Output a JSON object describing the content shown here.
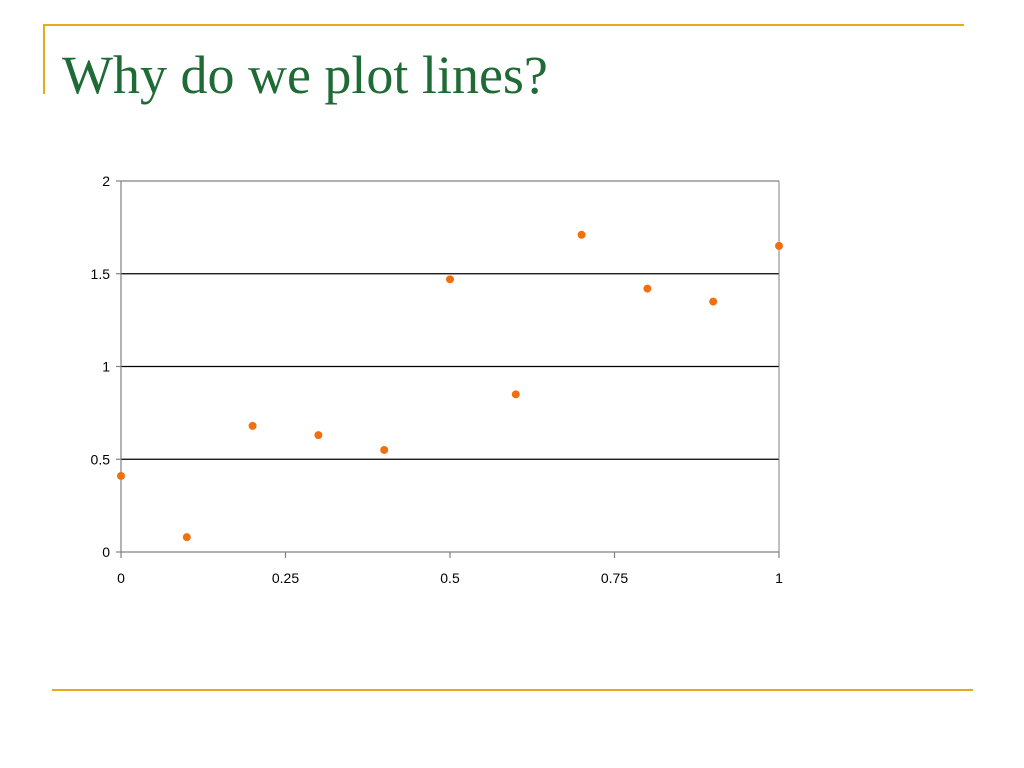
{
  "slide": {
    "title": "Why do we plot lines?"
  },
  "colors": {
    "title": "#1e6b35",
    "accent": "#e8a920",
    "marker": "#f07010",
    "gridline": "#000000",
    "axis": "#808080"
  },
  "chart_data": {
    "type": "scatter",
    "title": "",
    "xlabel": "",
    "ylabel": "",
    "xlim": [
      0,
      1
    ],
    "ylim": [
      0,
      2
    ],
    "x_ticks": [
      0,
      0.25,
      0.5,
      0.75,
      1
    ],
    "y_ticks": [
      0,
      0.5,
      1,
      1.5,
      2
    ],
    "x_tick_labels": [
      "0",
      "0.25",
      "0.5",
      "0.75",
      "1"
    ],
    "y_tick_labels": [
      "0",
      "0.5",
      "1",
      "1.5",
      "2"
    ],
    "grid": "horizontal",
    "legend": "none",
    "series": [
      {
        "marker": "circle",
        "points": [
          {
            "x": 0,
            "y": 0.41
          },
          {
            "x": 0.1,
            "y": 0.08
          },
          {
            "x": 0.2,
            "y": 0.68
          },
          {
            "x": 0.3,
            "y": 0.63
          },
          {
            "x": 0.4,
            "y": 0.55
          },
          {
            "x": 0.5,
            "y": 1.47
          },
          {
            "x": 0.6,
            "y": 0.85
          },
          {
            "x": 0.7,
            "y": 1.71
          },
          {
            "x": 0.8,
            "y": 1.42
          },
          {
            "x": 0.9,
            "y": 1.35
          },
          {
            "x": 1,
            "y": 1.65
          }
        ]
      }
    ]
  }
}
